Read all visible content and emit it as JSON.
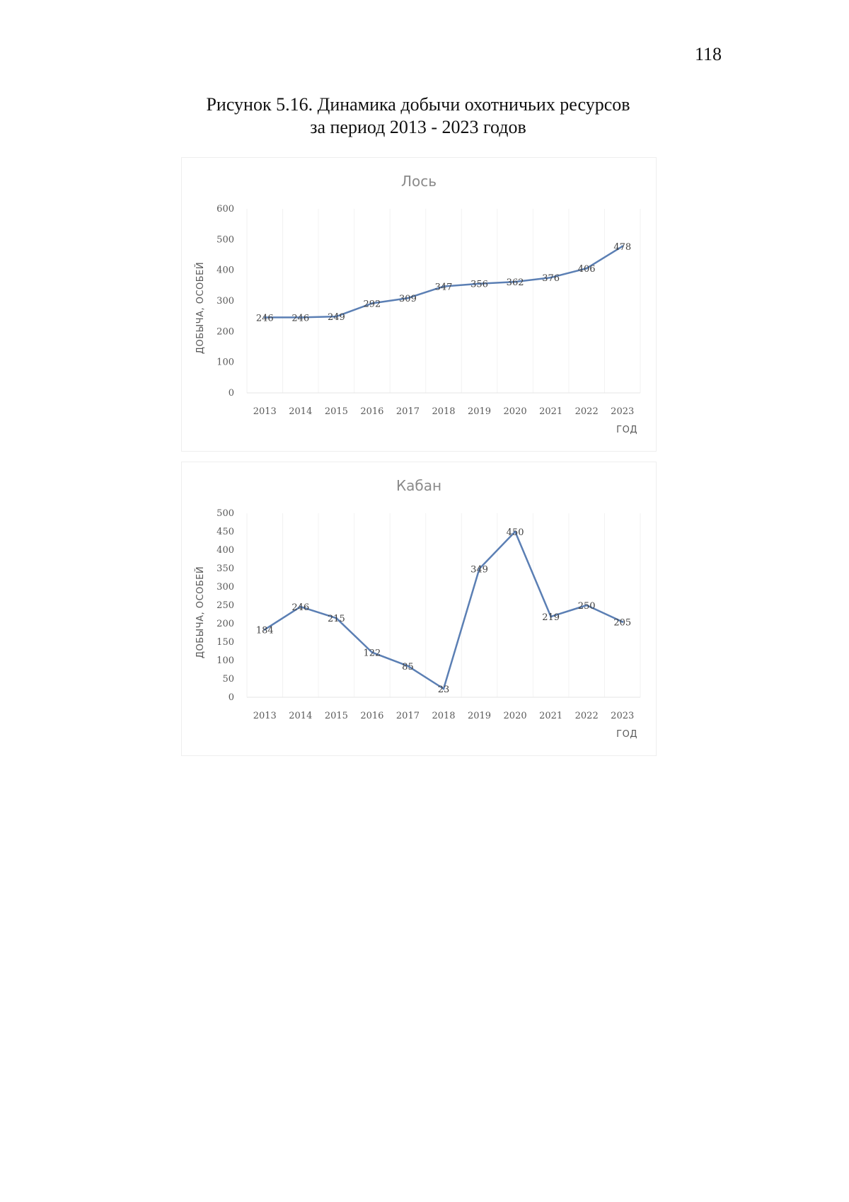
{
  "page_number": "118",
  "caption": {
    "line1": "Рисунок 5.16. Динамика добычи охотничьих ресурсов",
    "line2": "за период 2013 - 2023 годов"
  },
  "colors": {
    "line": "#5b7fb4",
    "text": "#595959",
    "title": "#8a8a8a"
  },
  "chart_data": [
    {
      "type": "line",
      "title": "Лось",
      "xlabel": "ГОД",
      "ylabel": "ДОБЫЧА, ОСОБЕЙ",
      "categories": [
        "2013",
        "2014",
        "2015",
        "2016",
        "2017",
        "2018",
        "2019",
        "2020",
        "2021",
        "2022",
        "2023"
      ],
      "values": [
        246,
        246,
        249,
        292,
        309,
        347,
        356,
        362,
        376,
        406,
        478
      ],
      "ylim": [
        0,
        600
      ],
      "yticks": [
        0,
        100,
        200,
        300,
        400,
        500,
        600
      ],
      "grid": "vertical-light",
      "legend": "none"
    },
    {
      "type": "line",
      "title": "Кабан",
      "xlabel": "ГОД",
      "ylabel": "ДОБЫЧА, ОСОБЕЙ",
      "categories": [
        "2013",
        "2014",
        "2015",
        "2016",
        "2017",
        "2018",
        "2019",
        "2020",
        "2021",
        "2022",
        "2023"
      ],
      "values": [
        184,
        246,
        215,
        122,
        85,
        23,
        349,
        450,
        219,
        250,
        205
      ],
      "ylim": [
        0,
        500
      ],
      "yticks": [
        0,
        50,
        100,
        150,
        200,
        250,
        300,
        350,
        400,
        450,
        500
      ],
      "grid": "vertical-light",
      "legend": "none"
    }
  ]
}
